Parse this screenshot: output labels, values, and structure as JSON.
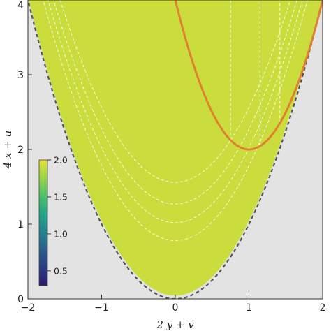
{
  "chart_data": {
    "type": "heatmap",
    "title": "",
    "xlabel": "2 y + v",
    "ylabel": "4 x + u",
    "xlim": [
      -2,
      2
    ],
    "ylim": [
      0,
      4
    ],
    "x_ticks": [
      -2,
      -1,
      0,
      1,
      2
    ],
    "y_ticks": [
      0,
      1,
      2,
      3,
      4
    ],
    "x_tick_labels": [
      "−2",
      "−1",
      "0",
      "1",
      "2"
    ],
    "y_tick_labels": [
      "0",
      "1",
      "2",
      "3",
      "4"
    ],
    "region_boundary": {
      "form": "y = x^2",
      "style": "dashed",
      "color": "#555555"
    },
    "outside_region_color": "#e3e3e3",
    "orange_curve": {
      "form": "y = 2 + 2*(x - 1)^2",
      "vertex": [
        1,
        2
      ],
      "color": "#e0812f"
    },
    "contours": {
      "style": "dashed",
      "color": "#ffffff",
      "vertex_levels": [
        0.78,
        1.02,
        1.27,
        1.56
      ]
    },
    "vertical_dashed_lines_x": [
      0.75,
      1.15,
      1.42
    ],
    "colorbar": {
      "ticks": [
        0.5,
        1.0,
        1.5,
        2.0
      ],
      "tick_labels": [
        "0.5",
        "1.0",
        "1.5",
        "2.0"
      ],
      "range": [
        0.3,
        2.0
      ],
      "colors": [
        "#2c1a6a",
        "#2a3a87",
        "#2a5e8c",
        "#24838e",
        "#21a587",
        "#4cc26a",
        "#9ad443",
        "#e6e23a"
      ]
    }
  }
}
